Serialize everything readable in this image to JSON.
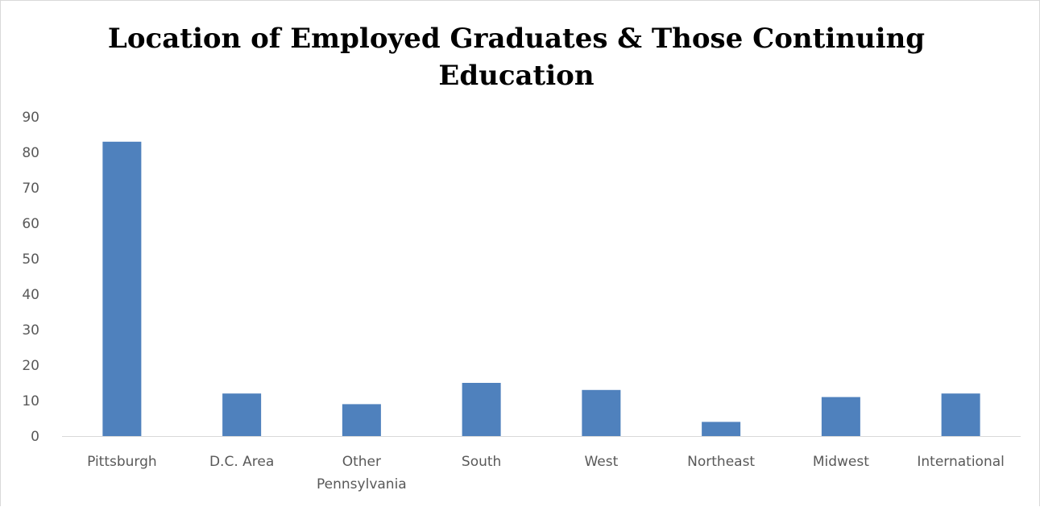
{
  "chart_data": {
    "type": "bar",
    "title": "Location of Employed Graduates & Those Continuing Education",
    "xlabel": "",
    "ylabel": "",
    "ylim": [
      0,
      90
    ],
    "yticks": [
      0,
      10,
      20,
      30,
      40,
      50,
      60,
      70,
      80,
      90
    ],
    "categories": [
      "Pittsburgh",
      "D.C. Area",
      "Other Pennsylvania",
      "South",
      "West",
      "Northeast",
      "Midwest",
      "International"
    ],
    "values": [
      83,
      12,
      9,
      15,
      13,
      4,
      11,
      12
    ],
    "grid": false,
    "legend": "none",
    "bar_color": "#4f81bd"
  }
}
